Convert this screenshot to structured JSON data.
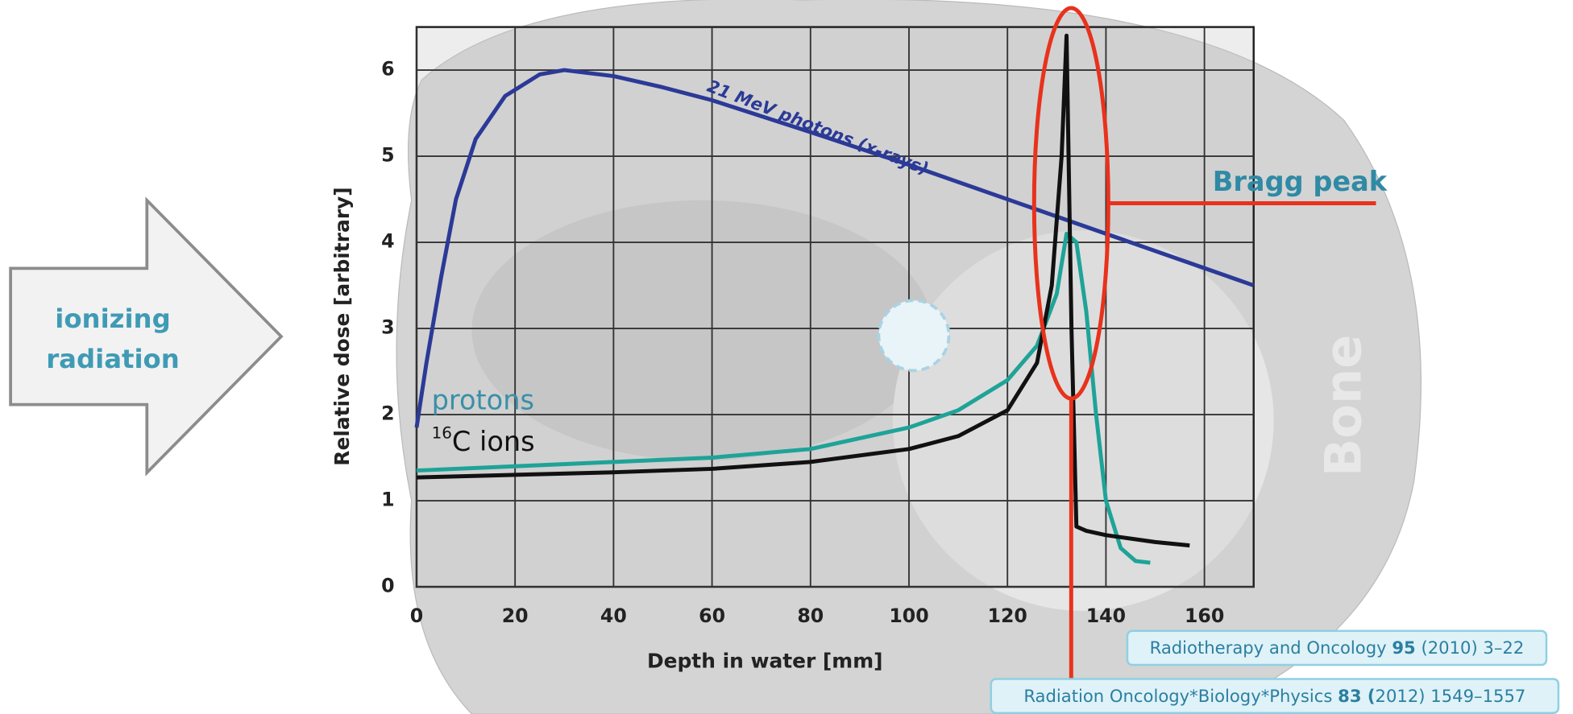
{
  "chart_data": {
    "type": "line",
    "xlabel": "Depth in water [mm]",
    "ylabel": "Relative dose [arbitrary]",
    "xlim": [
      0,
      170
    ],
    "ylim": [
      0,
      6.5
    ],
    "xticks": [
      0,
      20,
      40,
      60,
      80,
      100,
      120,
      140,
      160
    ],
    "yticks": [
      0,
      1,
      2,
      3,
      4,
      5,
      6
    ],
    "grid": true,
    "series": [
      {
        "name": "21 MeV photons (x-rays)",
        "color": "#2b3a97",
        "x": [
          0,
          2,
          5,
          8,
          12,
          18,
          25,
          30,
          40,
          50,
          60,
          80,
          100,
          120,
          140,
          160,
          170
        ],
        "values": [
          1.85,
          2.6,
          3.6,
          4.5,
          5.2,
          5.7,
          5.95,
          6.0,
          5.93,
          5.8,
          5.65,
          5.28,
          4.9,
          4.5,
          4.1,
          3.7,
          3.5
        ]
      },
      {
        "name": "protons",
        "color": "#1fa398",
        "x": [
          0,
          20,
          40,
          60,
          80,
          100,
          110,
          120,
          126,
          130,
          132,
          134,
          136,
          138,
          140,
          143,
          146,
          149
        ],
        "values": [
          1.35,
          1.4,
          1.45,
          1.5,
          1.6,
          1.85,
          2.05,
          2.4,
          2.8,
          3.4,
          4.1,
          4.0,
          3.2,
          2.0,
          1.0,
          0.45,
          0.3,
          0.28
        ]
      },
      {
        "name": "C ions",
        "name_superscript": "16",
        "color": "#111111",
        "x": [
          0,
          20,
          40,
          60,
          80,
          100,
          110,
          120,
          126,
          129,
          131,
          132,
          133,
          134,
          136,
          140,
          150,
          157
        ],
        "values": [
          1.27,
          1.3,
          1.33,
          1.37,
          1.45,
          1.6,
          1.75,
          2.05,
          2.6,
          3.5,
          5.0,
          6.4,
          3.0,
          0.7,
          0.65,
          0.6,
          0.52,
          0.48
        ]
      }
    ]
  },
  "annotations": {
    "bragg_peak": "Bragg peak",
    "arrow_text": [
      "ionizing",
      "radiation"
    ],
    "bone": "Bone"
  },
  "references": [
    {
      "prefix": "Radiotherapy and Oncology",
      "volume": "95",
      "rest": "(2010) 3–22"
    },
    {
      "prefix": "Radiation Oncology*Biology*Physics",
      "volume": "83 (",
      "rest": "2012) 1549–1557"
    }
  ]
}
